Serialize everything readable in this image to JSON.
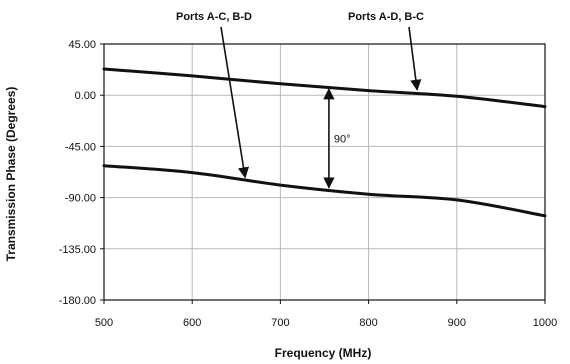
{
  "chart_data": {
    "type": "line",
    "xlabel": "Frequency (MHz)",
    "ylabel": "Transmission Phase (Degrees)",
    "xlim": [
      500,
      1000
    ],
    "ylim": [
      -180,
      45
    ],
    "x_ticks": [
      "500",
      "600",
      "700",
      "800",
      "900",
      "1000"
    ],
    "y_ticks": [
      "45.00",
      "0.00",
      "-45.00",
      "-90.00",
      "-135.00",
      "-180.00"
    ],
    "grid": true,
    "series": [
      {
        "name": "Ports A-D, B-C",
        "x": [
          500,
          600,
          700,
          800,
          900,
          1000
        ],
        "values": [
          23,
          17,
          10,
          4,
          -1,
          -10
        ]
      },
      {
        "name": "Ports A-C, B-D",
        "x": [
          500,
          600,
          700,
          800,
          900,
          1000
        ],
        "values": [
          -62,
          -68,
          -79,
          -87,
          -92,
          -106
        ]
      }
    ],
    "annotations": [
      {
        "text": "Ports A-C, B-D",
        "target_series": 1,
        "target_x": 660,
        "target_y": -74
      },
      {
        "text": "Ports A-D, B-C",
        "target_series": 0,
        "target_x": 855,
        "target_y": 3
      },
      {
        "text": "90°",
        "x": 755,
        "y_top": 7,
        "y_bottom": -83
      }
    ],
    "line_color": "#111111",
    "grid_color": "#b8b8b8"
  }
}
